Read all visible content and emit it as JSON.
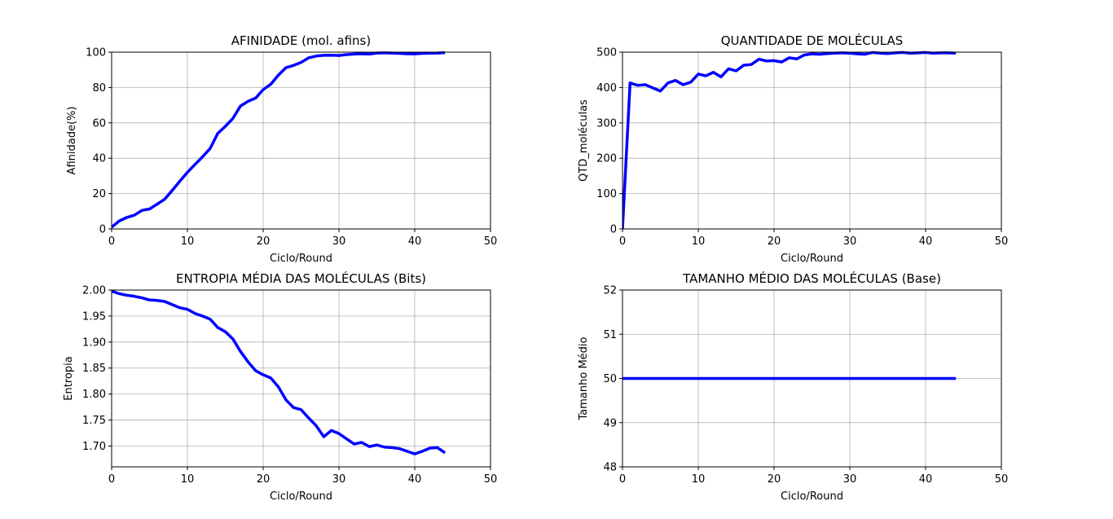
{
  "chart_data": [
    {
      "type": "line",
      "title": "AFINIDADE (mol. afins)",
      "xlabel": "Ciclo/Round",
      "ylabel": "Afinidade(%)",
      "xlim": [
        0,
        50
      ],
      "ylim": [
        0,
        100
      ],
      "xticks": [
        0,
        10,
        20,
        30,
        40,
        50
      ],
      "yticks": [
        0,
        20,
        40,
        60,
        80,
        100
      ],
      "xtick_labels": [
        "0",
        "10",
        "20",
        "30",
        "40",
        "50"
      ],
      "ytick_labels": [
        "0",
        "20",
        "40",
        "60",
        "80",
        "100"
      ],
      "grid": true,
      "color": "#0000ff",
      "x": [
        0,
        1,
        2,
        3,
        4,
        5,
        6,
        7,
        8,
        9,
        10,
        11,
        12,
        13,
        14,
        15,
        16,
        17,
        18,
        19,
        20,
        21,
        22,
        23,
        24,
        25,
        26,
        27,
        28,
        29,
        30,
        31,
        32,
        33,
        34,
        35,
        36,
        37,
        38,
        39,
        40,
        41,
        42,
        43,
        44
      ],
      "y": [
        1,
        4.5,
        6.5,
        7.8,
        10.5,
        11.3,
        14,
        16.8,
        21.8,
        27,
        32,
        36.5,
        40.8,
        45.5,
        54,
        58,
        62.5,
        69.5,
        72.2,
        74,
        78.8,
        81.8,
        87,
        91.2,
        92.5,
        94.2,
        96.8,
        97.8,
        98.2,
        98.3,
        98.1,
        98.6,
        98.9,
        99.1,
        98.9,
        99.5,
        99.6,
        99.5,
        99.3,
        99.1,
        99,
        99.3,
        99.4,
        99.5,
        99.7
      ]
    },
    {
      "type": "line",
      "title": "QUANTIDADE DE MOLÉCULAS",
      "xlabel": "Ciclo/Round",
      "ylabel": "QTD_moléculas",
      "xlim": [
        0,
        50
      ],
      "ylim": [
        0,
        500
      ],
      "xticks": [
        0,
        10,
        20,
        30,
        40,
        50
      ],
      "yticks": [
        0,
        100,
        200,
        300,
        400,
        500
      ],
      "xtick_labels": [
        "0",
        "10",
        "20",
        "30",
        "40",
        "50"
      ],
      "ytick_labels": [
        "0",
        "100",
        "200",
        "300",
        "400",
        "500"
      ],
      "grid": true,
      "color": "#0000ff",
      "x": [
        0,
        1,
        2,
        3,
        4,
        5,
        6,
        7,
        8,
        9,
        10,
        11,
        12,
        13,
        14,
        15,
        16,
        17,
        18,
        19,
        20,
        21,
        22,
        23,
        24,
        25,
        26,
        27,
        28,
        29,
        30,
        31,
        32,
        33,
        34,
        35,
        36,
        37,
        38,
        39,
        40,
        41,
        42,
        43,
        44
      ],
      "y": [
        0,
        413,
        406,
        408,
        399,
        390,
        413,
        420,
        408,
        415,
        438,
        433,
        443,
        430,
        453,
        447,
        463,
        465,
        480,
        475,
        476,
        472,
        484,
        481,
        492,
        495,
        494,
        496,
        497,
        498,
        497,
        495,
        494,
        499,
        497,
        496,
        498,
        499,
        497,
        498,
        499,
        497,
        498,
        498,
        497
      ]
    },
    {
      "type": "line",
      "title": "ENTROPIA MÉDIA DAS MOLÉCULAS (Bits)",
      "xlabel": "Ciclo/Round",
      "ylabel": "Entropia",
      "xlim": [
        0,
        50
      ],
      "ylim": [
        1.66,
        2.0
      ],
      "xticks": [
        0,
        10,
        20,
        30,
        40,
        50
      ],
      "yticks": [
        1.7,
        1.75,
        1.8,
        1.85,
        1.9,
        1.95,
        2.0
      ],
      "xtick_labels": [
        "0",
        "10",
        "20",
        "30",
        "40",
        "50"
      ],
      "ytick_labels": [
        "1.70",
        "1.75",
        "1.80",
        "1.85",
        "1.90",
        "1.95",
        "2.00"
      ],
      "grid": true,
      "color": "#0000ff",
      "x": [
        0,
        1,
        2,
        3,
        4,
        5,
        6,
        7,
        8,
        9,
        10,
        11,
        12,
        13,
        14,
        15,
        16,
        17,
        18,
        19,
        20,
        21,
        22,
        23,
        24,
        25,
        26,
        27,
        28,
        29,
        30,
        31,
        32,
        33,
        34,
        35,
        36,
        37,
        38,
        39,
        40,
        41,
        42,
        43,
        44
      ],
      "y": [
        1.998,
        1.993,
        1.99,
        1.988,
        1.985,
        1.981,
        1.98,
        1.978,
        1.972,
        1.966,
        1.963,
        1.955,
        1.95,
        1.944,
        1.928,
        1.92,
        1.906,
        1.882,
        1.862,
        1.845,
        1.837,
        1.831,
        1.814,
        1.789,
        1.774,
        1.77,
        1.754,
        1.739,
        1.718,
        1.73,
        1.724,
        1.714,
        1.704,
        1.707,
        1.699,
        1.702,
        1.698,
        1.697,
        1.695,
        1.69,
        1.685,
        1.69,
        1.696,
        1.697,
        1.687
      ]
    },
    {
      "type": "line",
      "title": "TAMANHO MÉDIO DAS MOLÉCULAS (Base)",
      "xlabel": "Ciclo/Round",
      "ylabel": "Tamanho Médio",
      "xlim": [
        0,
        50
      ],
      "ylim": [
        48,
        52
      ],
      "xticks": [
        0,
        10,
        20,
        30,
        40,
        50
      ],
      "yticks": [
        48,
        49,
        50,
        51,
        52
      ],
      "xtick_labels": [
        "0",
        "10",
        "20",
        "30",
        "40",
        "50"
      ],
      "ytick_labels": [
        "48",
        "49",
        "50",
        "51",
        "52"
      ],
      "grid": true,
      "color": "#0000ff",
      "x": [
        0,
        1,
        2,
        3,
        4,
        5,
        6,
        7,
        8,
        9,
        10,
        11,
        12,
        13,
        14,
        15,
        16,
        17,
        18,
        19,
        20,
        21,
        22,
        23,
        24,
        25,
        26,
        27,
        28,
        29,
        30,
        31,
        32,
        33,
        34,
        35,
        36,
        37,
        38,
        39,
        40,
        41,
        42,
        43,
        44
      ],
      "y": [
        50,
        50,
        50,
        50,
        50,
        50,
        50,
        50,
        50,
        50,
        50,
        50,
        50,
        50,
        50,
        50,
        50,
        50,
        50,
        50,
        50,
        50,
        50,
        50,
        50,
        50,
        50,
        50,
        50,
        50,
        50,
        50,
        50,
        50,
        50,
        50,
        50,
        50,
        50,
        50,
        50,
        50,
        50,
        50,
        50
      ]
    }
  ]
}
